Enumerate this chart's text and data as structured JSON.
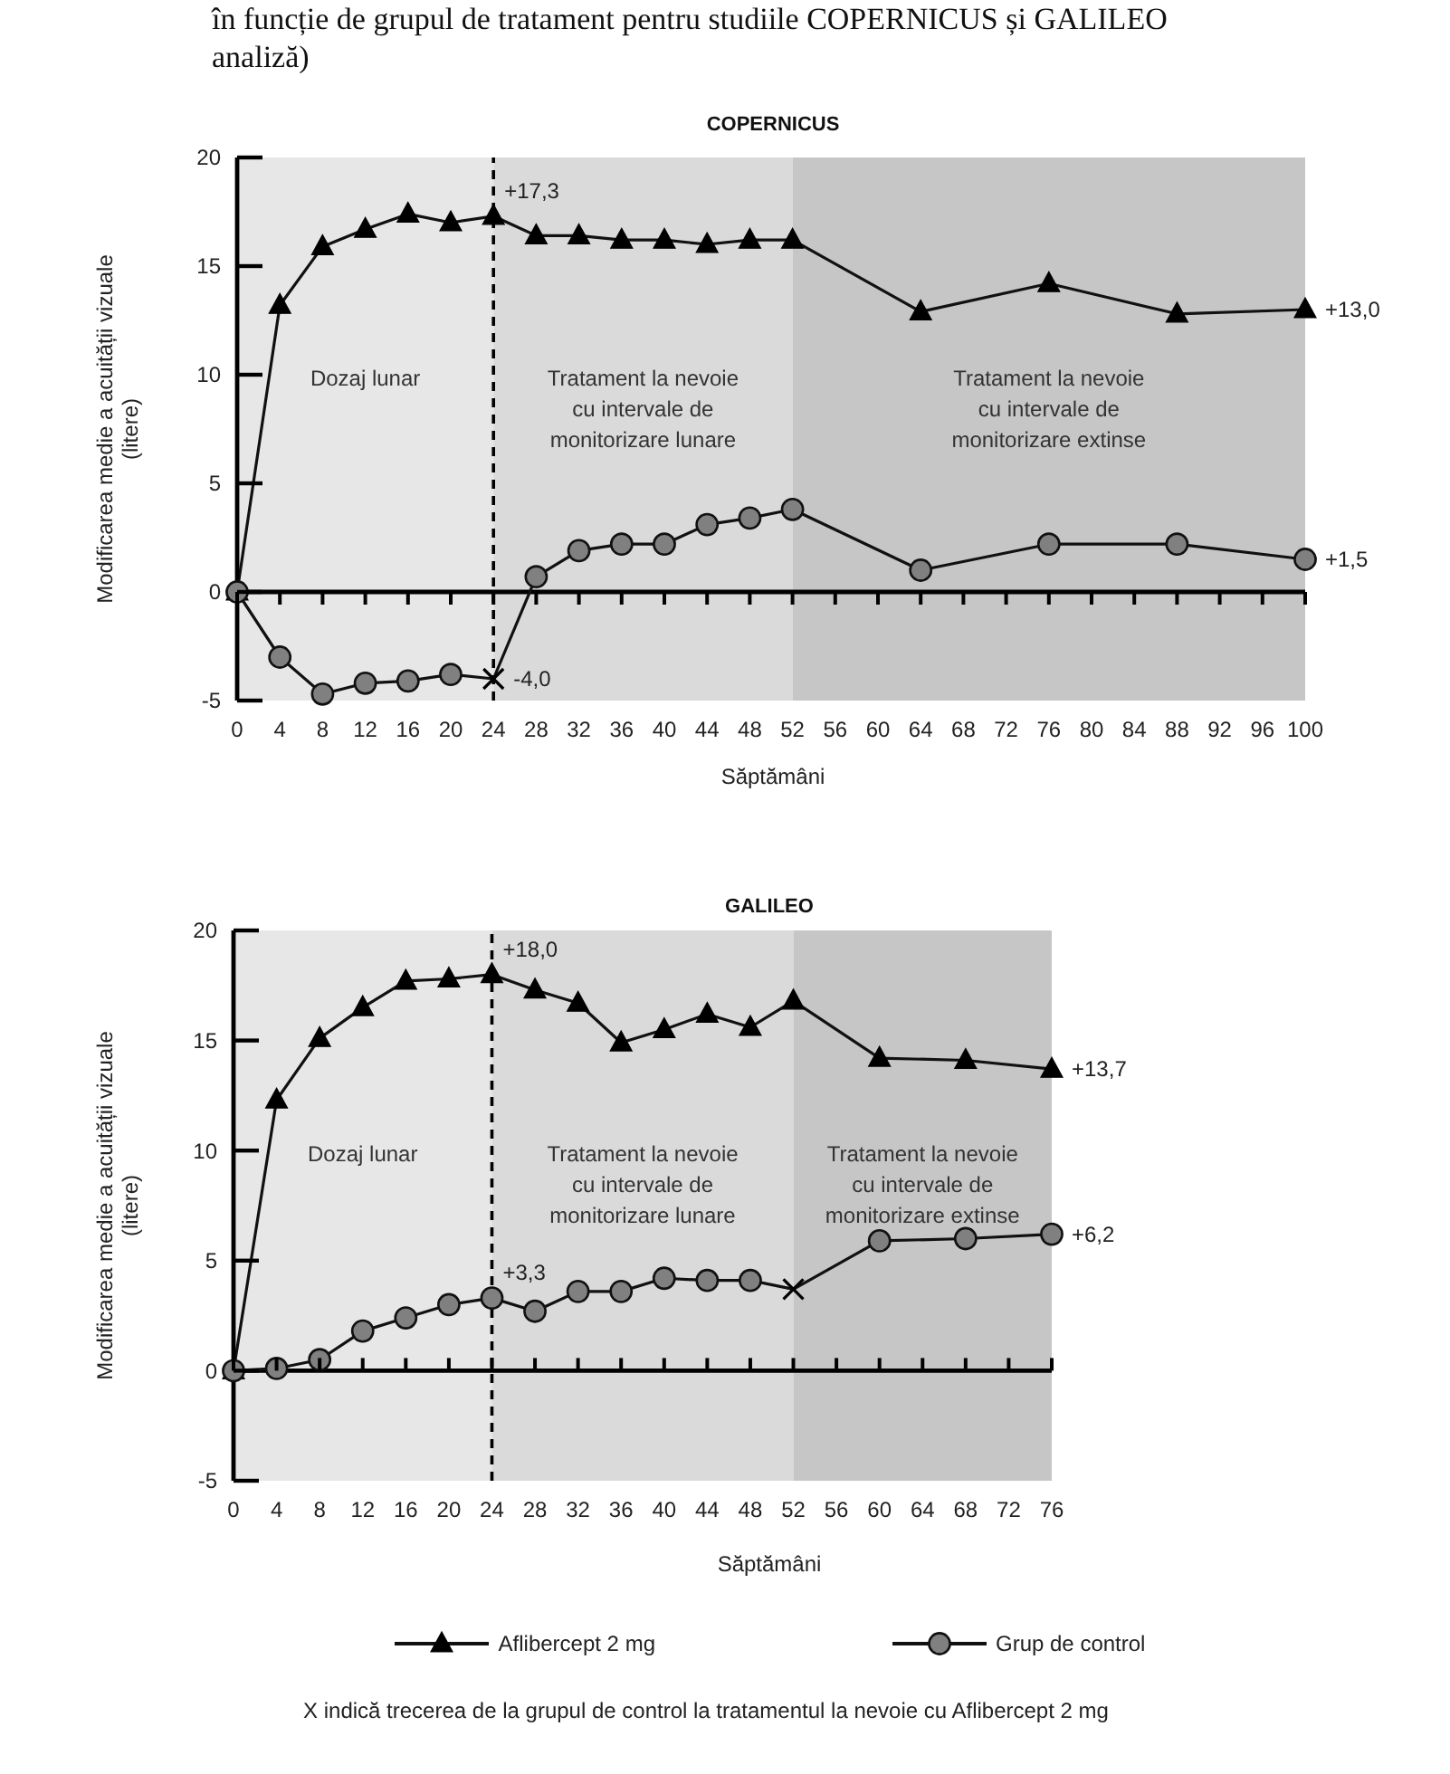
{
  "chart_data": [
    {
      "type": "line",
      "title": "COPERNICUS",
      "xlabel": "Săptămâni",
      "ylabel": "Modificarea medie a acuității vizuale\n(litere)",
      "annotations": [
        "în funcție de grupul de tratament pentru studiile COPERNICUS și GALILEO",
        "analiză)"
      ],
      "x": [
        0,
        4,
        8,
        12,
        16,
        20,
        24,
        28,
        32,
        36,
        40,
        44,
        48,
        52,
        64,
        76,
        88,
        100
      ],
      "series": [
        {
          "color": "#000000",
          "marker": "triangle",
          "values": [
            0,
            13.2,
            15.9,
            16.7,
            17.4,
            17.0,
            17.3,
            16.4,
            16.4,
            16.2,
            16.2,
            16.0,
            16.2,
            16.2,
            12.9,
            14.2,
            12.8,
            13.0
          ],
          "value_labels": [
            null,
            null,
            null,
            null,
            null,
            null,
            "+17,3",
            null,
            null,
            null,
            null,
            null,
            null,
            null,
            null,
            null,
            null,
            "+13,0"
          ]
        },
        {
          "color": "#808080",
          "marker": "circle",
          "values": [
            0,
            -3.0,
            -4.7,
            -4.2,
            -4.1,
            -3.8,
            -4.0,
            0.7,
            1.9,
            2.2,
            2.2,
            3.1,
            3.4,
            3.8,
            1.0,
            2.2,
            2.2,
            1.5
          ],
          "value_labels": [
            null,
            null,
            null,
            null,
            null,
            null,
            null,
            null,
            null,
            null,
            null,
            null,
            null,
            null,
            null,
            null,
            null,
            "+1,5"
          ]
        },
        {
          "type": "scatter",
          "color": "#000000",
          "marker": "cross",
          "x": [
            24
          ],
          "values": [
            -4.0
          ],
          "value_labels": [
            "-4,0"
          ]
        }
      ],
      "xlim": [
        0,
        100
      ],
      "xticks": [
        0,
        4,
        8,
        12,
        16,
        20,
        24,
        28,
        32,
        36,
        40,
        44,
        48,
        52,
        56,
        60,
        64,
        68,
        72,
        76,
        80,
        84,
        88,
        92,
        96,
        100
      ],
      "ylim": [
        -5,
        20
      ],
      "yticks": [
        -5,
        0,
        5,
        10,
        15,
        20
      ],
      "bands": [
        {
          "axis": "x",
          "from": 0,
          "to": 24,
          "label": "Dozaj lunar",
          "color": "#e7e7e7"
        },
        {
          "axis": "x",
          "from": 24,
          "to": 52,
          "label": "Tratament la nevoie\ncu intervale de\nmonitorizare lunare",
          "color": "#dadada"
        },
        {
          "axis": "x",
          "from": 52,
          "to": 100,
          "label": "Tratament la nevoie\ncu intervale de\nmonitorizare extinse",
          "color": "#c6c6c6"
        }
      ],
      "ref_lines": [
        {
          "axis": "x",
          "value": 24,
          "color": "#000000",
          "line_style": "dashed"
        }
      ]
    },
    {
      "type": "line",
      "title": "GALILEO",
      "xlabel": "Săptămâni",
      "ylabel": "Modificarea medie a acuității vizuale\n(litere)",
      "annotations": [
        "X indică trecerea de la grupul de control la tratamentul la nevoie cu Aflibercept 2 mg"
      ],
      "x": [
        0,
        4,
        8,
        12,
        16,
        20,
        24,
        28,
        32,
        36,
        40,
        44,
        48,
        52,
        60,
        68,
        76
      ],
      "series": [
        {
          "name": "Aflibercept 2 mg",
          "color": "#000000",
          "marker": "triangle",
          "values": [
            0,
            12.3,
            15.1,
            16.5,
            17.7,
            17.8,
            18.0,
            17.3,
            16.7,
            14.9,
            15.5,
            16.2,
            15.6,
            16.8,
            14.2,
            14.1,
            13.7
          ],
          "value_labels": [
            null,
            null,
            null,
            null,
            null,
            null,
            "+18,0",
            null,
            null,
            null,
            null,
            null,
            null,
            null,
            null,
            null,
            "+13,7"
          ]
        },
        {
          "name": "Grup de control",
          "color": "#808080",
          "marker": "circle",
          "values": [
            0,
            0.1,
            0.5,
            1.8,
            2.4,
            3.0,
            3.3,
            2.7,
            3.6,
            3.6,
            4.2,
            4.1,
            4.1,
            3.7,
            5.9,
            6.0,
            6.2
          ],
          "value_labels": [
            null,
            null,
            null,
            null,
            null,
            null,
            "+3,3",
            null,
            null,
            null,
            null,
            null,
            null,
            null,
            null,
            null,
            "+6,2"
          ]
        },
        {
          "type": "scatter",
          "color": "#000000",
          "marker": "cross",
          "x": [
            52
          ],
          "values": [
            3.7
          ]
        }
      ],
      "xlim": [
        0,
        76
      ],
      "xticks": [
        0,
        4,
        8,
        12,
        16,
        20,
        24,
        28,
        32,
        36,
        40,
        44,
        48,
        52,
        56,
        60,
        64,
        68,
        72,
        76
      ],
      "ylim": [
        -5,
        20
      ],
      "yticks": [
        -5,
        0,
        5,
        10,
        15,
        20
      ],
      "bands": [
        {
          "axis": "x",
          "from": 0,
          "to": 24,
          "label": "Dozaj lunar",
          "color": "#e7e7e7"
        },
        {
          "axis": "x",
          "from": 24,
          "to": 52,
          "label": "Tratament la nevoie\ncu intervale de\nmonitorizare lunare",
          "color": "#dadada"
        },
        {
          "axis": "x",
          "from": 52,
          "to": 76,
          "label": "Tratament la nevoie\ncu intervale de\nmonitorizare extinse",
          "color": "#c6c6c6"
        }
      ],
      "ref_lines": [
        {
          "axis": "x",
          "value": 24,
          "color": "#000000",
          "line_style": "dashed"
        }
      ],
      "legend": "bottom"
    }
  ]
}
